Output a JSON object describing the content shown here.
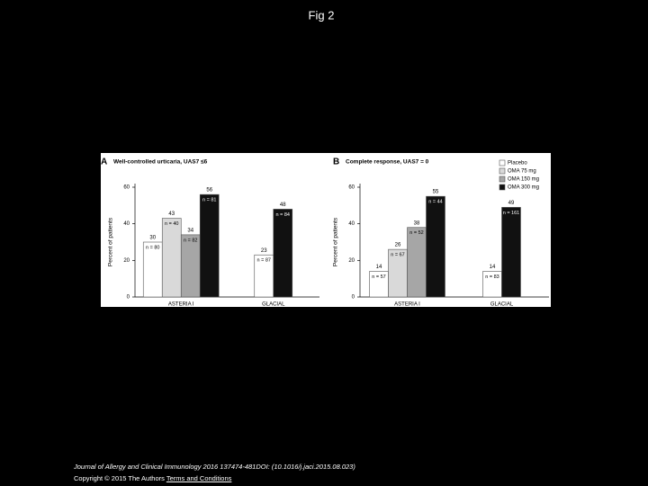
{
  "slide_title": "Fig 2",
  "citation": {
    "line1": "Journal of Allergy and Clinical Immunology 2016 137474-481DOI: (10.1016/j.jaci.2015.08.023)",
    "line2": "Copyright © 2015 The Authors",
    "link": "Terms and Conditions"
  },
  "chart_data": [
    {
      "type": "bar",
      "panel": "A",
      "title": "Well-controlled urticaria, UAS7 ≤6",
      "y_label": "Percent of patients",
      "categories": [
        "ASTERIA I",
        "GLACIAL"
      ],
      "ylim": [
        0,
        60
      ],
      "yticks": [
        0,
        20,
        40,
        60
      ],
      "legend": false,
      "series": [
        {
          "color": "#ffffff",
          "values": [
            30,
            23
          ],
          "n_labels": [
            "n = 80",
            "n = 87"
          ]
        },
        {
          "color": "#d9d9d9",
          "values": [
            43,
            null
          ],
          "n_labels": [
            "n = 40",
            null
          ]
        },
        {
          "color": "#a6a6a6",
          "values": [
            34,
            null
          ],
          "n_labels": [
            "n = 82",
            null
          ]
        },
        {
          "color": "#111111",
          "values": [
            56,
            48
          ],
          "n_labels": [
            "n = 81",
            "n = 84"
          ]
        }
      ]
    },
    {
      "type": "bar",
      "panel": "B",
      "title": "Complete response, UAS7 = 0",
      "y_label": "Percent of patients",
      "categories": [
        "ASTERIA I",
        "GLACIAL"
      ],
      "ylim": [
        0,
        60
      ],
      "yticks": [
        0,
        20,
        40,
        60
      ],
      "legend": true,
      "series": [
        {
          "name": "Placebo",
          "color": "#ffffff",
          "values": [
            14,
            14
          ],
          "n_labels": [
            "n = 57",
            "n = 83"
          ]
        },
        {
          "name": "OMA 75 mg",
          "color": "#d9d9d9",
          "values": [
            26,
            null
          ],
          "n_labels": [
            "n = 67",
            null
          ]
        },
        {
          "name": "OMA 150 mg",
          "color": "#a6a6a6",
          "values": [
            38,
            null
          ],
          "n_labels": [
            "n = 52",
            null
          ]
        },
        {
          "name": "OMA 300 mg",
          "color": "#111111",
          "values": [
            55,
            49
          ],
          "n_labels": [
            "n = 44",
            "n = 161"
          ]
        }
      ]
    }
  ]
}
